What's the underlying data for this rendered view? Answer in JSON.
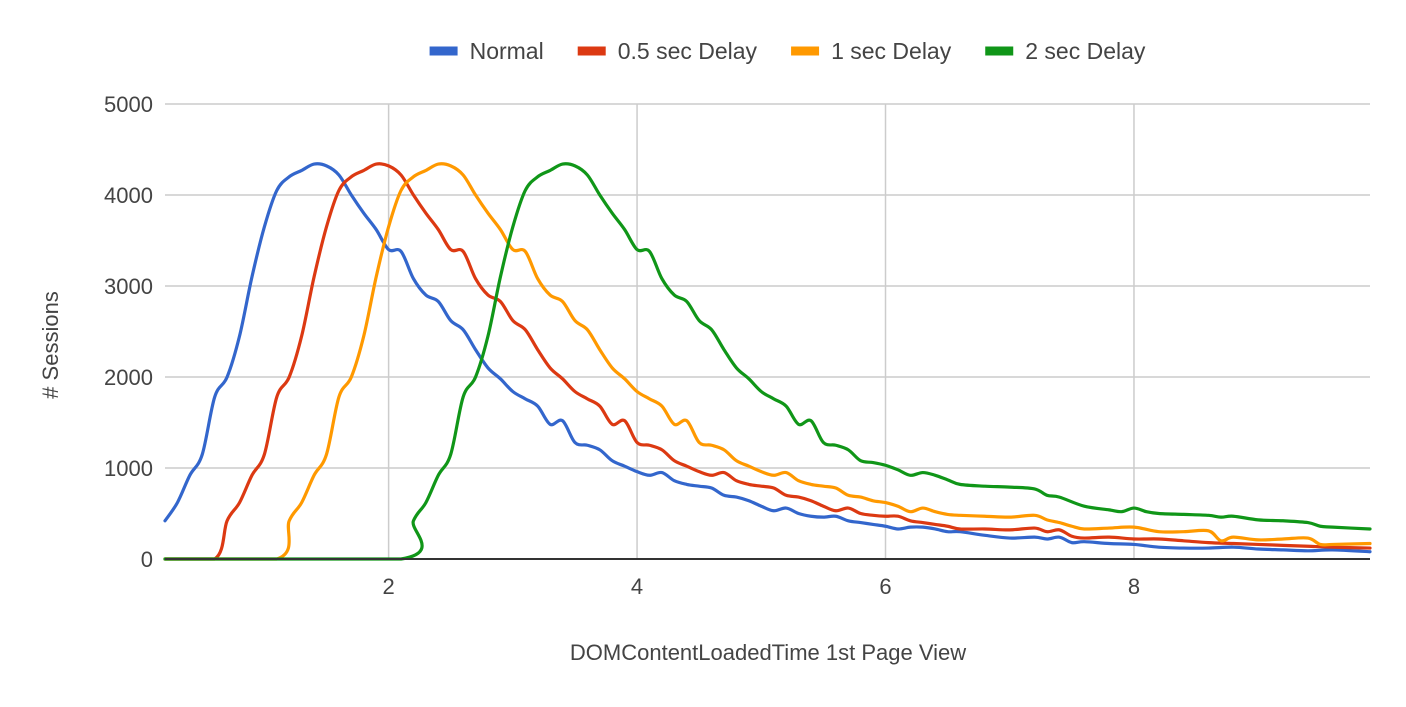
{
  "chart_data": {
    "type": "line",
    "title": "",
    "xlabel": "DOMContentLoadedTime 1st Page View",
    "ylabel": "# Sessions",
    "xlim": [
      0.2,
      9.9
    ],
    "ylim": [
      0,
      5000
    ],
    "x_ticks": [
      2,
      4,
      6,
      8
    ],
    "x_tick_labels": [
      "2",
      "4",
      "6",
      "8"
    ],
    "y_ticks": [
      0,
      1000,
      2000,
      3000,
      4000,
      5000
    ],
    "y_tick_labels": [
      "0",
      "1000",
      "2000",
      "3000",
      "4000",
      "5000"
    ],
    "grid": true,
    "legend_position": "top",
    "series": [
      {
        "name": "Normal",
        "color": "#3366cc",
        "points": [
          [
            0.2,
            420
          ],
          [
            0.3,
            620
          ],
          [
            0.4,
            920
          ],
          [
            0.5,
            1150
          ],
          [
            0.6,
            1780
          ],
          [
            0.7,
            2000
          ],
          [
            0.8,
            2450
          ],
          [
            0.9,
            3100
          ],
          [
            1.0,
            3650
          ],
          [
            1.1,
            4050
          ],
          [
            1.2,
            4200
          ],
          [
            1.3,
            4270
          ],
          [
            1.4,
            4340
          ],
          [
            1.5,
            4320
          ],
          [
            1.6,
            4220
          ],
          [
            1.7,
            4000
          ],
          [
            1.8,
            3800
          ],
          [
            1.9,
            3620
          ],
          [
            2.0,
            3400
          ],
          [
            2.1,
            3380
          ],
          [
            2.2,
            3080
          ],
          [
            2.3,
            2900
          ],
          [
            2.4,
            2830
          ],
          [
            2.5,
            2620
          ],
          [
            2.6,
            2520
          ],
          [
            2.7,
            2300
          ],
          [
            2.8,
            2100
          ],
          [
            2.9,
            1980
          ],
          [
            3.0,
            1840
          ],
          [
            3.1,
            1760
          ],
          [
            3.2,
            1680
          ],
          [
            3.3,
            1480
          ],
          [
            3.4,
            1520
          ],
          [
            3.5,
            1280
          ],
          [
            3.6,
            1250
          ],
          [
            3.7,
            1200
          ],
          [
            3.8,
            1080
          ],
          [
            3.9,
            1020
          ],
          [
            4.0,
            960
          ],
          [
            4.1,
            920
          ],
          [
            4.2,
            950
          ],
          [
            4.3,
            860
          ],
          [
            4.4,
            820
          ],
          [
            4.5,
            800
          ],
          [
            4.6,
            780
          ],
          [
            4.7,
            700
          ],
          [
            4.8,
            680
          ],
          [
            4.9,
            640
          ],
          [
            5.0,
            580
          ],
          [
            5.1,
            530
          ],
          [
            5.2,
            560
          ],
          [
            5.3,
            500
          ],
          [
            5.4,
            470
          ],
          [
            5.5,
            460
          ],
          [
            5.6,
            470
          ],
          [
            5.7,
            420
          ],
          [
            5.8,
            400
          ],
          [
            5.9,
            380
          ],
          [
            6.0,
            360
          ],
          [
            6.1,
            330
          ],
          [
            6.2,
            350
          ],
          [
            6.3,
            350
          ],
          [
            6.4,
            330
          ],
          [
            6.5,
            300
          ],
          [
            6.6,
            300
          ],
          [
            6.8,
            260
          ],
          [
            7.0,
            230
          ],
          [
            7.2,
            240
          ],
          [
            7.3,
            220
          ],
          [
            7.4,
            240
          ],
          [
            7.5,
            180
          ],
          [
            7.6,
            190
          ],
          [
            7.8,
            170
          ],
          [
            8.0,
            160
          ],
          [
            8.2,
            130
          ],
          [
            8.4,
            120
          ],
          [
            8.6,
            120
          ],
          [
            8.8,
            130
          ],
          [
            9.0,
            110
          ],
          [
            9.2,
            100
          ],
          [
            9.4,
            90
          ],
          [
            9.6,
            100
          ],
          [
            9.9,
            80
          ]
        ]
      },
      {
        "name": "0.5 sec Delay",
        "color": "#dc3912",
        "points": [
          [
            0.2,
            0
          ],
          [
            0.6,
            0
          ],
          [
            0.7,
            420
          ],
          [
            0.8,
            620
          ],
          [
            0.9,
            920
          ],
          [
            1.0,
            1150
          ],
          [
            1.1,
            1780
          ],
          [
            1.2,
            2000
          ],
          [
            1.3,
            2450
          ],
          [
            1.4,
            3100
          ],
          [
            1.5,
            3650
          ],
          [
            1.6,
            4050
          ],
          [
            1.7,
            4200
          ],
          [
            1.8,
            4270
          ],
          [
            1.9,
            4340
          ],
          [
            2.0,
            4320
          ],
          [
            2.1,
            4220
          ],
          [
            2.2,
            4000
          ],
          [
            2.3,
            3800
          ],
          [
            2.4,
            3620
          ],
          [
            2.5,
            3400
          ],
          [
            2.6,
            3380
          ],
          [
            2.7,
            3080
          ],
          [
            2.8,
            2900
          ],
          [
            2.9,
            2830
          ],
          [
            3.0,
            2620
          ],
          [
            3.1,
            2520
          ],
          [
            3.2,
            2300
          ],
          [
            3.3,
            2100
          ],
          [
            3.4,
            1980
          ],
          [
            3.5,
            1840
          ],
          [
            3.6,
            1760
          ],
          [
            3.7,
            1680
          ],
          [
            3.8,
            1480
          ],
          [
            3.9,
            1520
          ],
          [
            4.0,
            1280
          ],
          [
            4.1,
            1250
          ],
          [
            4.2,
            1200
          ],
          [
            4.3,
            1080
          ],
          [
            4.4,
            1020
          ],
          [
            4.5,
            960
          ],
          [
            4.6,
            920
          ],
          [
            4.7,
            950
          ],
          [
            4.8,
            860
          ],
          [
            4.9,
            820
          ],
          [
            5.0,
            800
          ],
          [
            5.1,
            780
          ],
          [
            5.2,
            700
          ],
          [
            5.3,
            680
          ],
          [
            5.4,
            640
          ],
          [
            5.5,
            580
          ],
          [
            5.6,
            530
          ],
          [
            5.7,
            560
          ],
          [
            5.8,
            500
          ],
          [
            5.9,
            480
          ],
          [
            6.0,
            470
          ],
          [
            6.1,
            470
          ],
          [
            6.2,
            420
          ],
          [
            6.3,
            400
          ],
          [
            6.4,
            380
          ],
          [
            6.5,
            360
          ],
          [
            6.6,
            330
          ],
          [
            6.8,
            330
          ],
          [
            7.0,
            320
          ],
          [
            7.2,
            340
          ],
          [
            7.3,
            300
          ],
          [
            7.4,
            320
          ],
          [
            7.5,
            250
          ],
          [
            7.6,
            230
          ],
          [
            7.8,
            240
          ],
          [
            8.0,
            220
          ],
          [
            8.2,
            220
          ],
          [
            8.4,
            200
          ],
          [
            8.6,
            180
          ],
          [
            8.8,
            170
          ],
          [
            9.0,
            160
          ],
          [
            9.2,
            150
          ],
          [
            9.4,
            140
          ],
          [
            9.6,
            130
          ],
          [
            9.9,
            120
          ]
        ]
      },
      {
        "name": "1 sec Delay",
        "color": "#ff9900",
        "points": [
          [
            0.2,
            0
          ],
          [
            1.1,
            0
          ],
          [
            1.2,
            420
          ],
          [
            1.3,
            620
          ],
          [
            1.4,
            920
          ],
          [
            1.5,
            1150
          ],
          [
            1.6,
            1780
          ],
          [
            1.7,
            2000
          ],
          [
            1.8,
            2450
          ],
          [
            1.9,
            3100
          ],
          [
            2.0,
            3650
          ],
          [
            2.1,
            4050
          ],
          [
            2.2,
            4200
          ],
          [
            2.3,
            4270
          ],
          [
            2.4,
            4340
          ],
          [
            2.5,
            4320
          ],
          [
            2.6,
            4220
          ],
          [
            2.7,
            4000
          ],
          [
            2.8,
            3800
          ],
          [
            2.9,
            3620
          ],
          [
            3.0,
            3400
          ],
          [
            3.1,
            3380
          ],
          [
            3.2,
            3080
          ],
          [
            3.3,
            2900
          ],
          [
            3.4,
            2830
          ],
          [
            3.5,
            2620
          ],
          [
            3.6,
            2520
          ],
          [
            3.7,
            2300
          ],
          [
            3.8,
            2100
          ],
          [
            3.9,
            1980
          ],
          [
            4.0,
            1840
          ],
          [
            4.1,
            1760
          ],
          [
            4.2,
            1680
          ],
          [
            4.3,
            1480
          ],
          [
            4.4,
            1520
          ],
          [
            4.5,
            1280
          ],
          [
            4.6,
            1250
          ],
          [
            4.7,
            1200
          ],
          [
            4.8,
            1080
          ],
          [
            4.9,
            1020
          ],
          [
            5.0,
            960
          ],
          [
            5.1,
            920
          ],
          [
            5.2,
            950
          ],
          [
            5.3,
            860
          ],
          [
            5.4,
            820
          ],
          [
            5.5,
            800
          ],
          [
            5.6,
            780
          ],
          [
            5.7,
            700
          ],
          [
            5.8,
            680
          ],
          [
            5.9,
            640
          ],
          [
            6.0,
            620
          ],
          [
            6.1,
            580
          ],
          [
            6.2,
            520
          ],
          [
            6.3,
            560
          ],
          [
            6.4,
            520
          ],
          [
            6.5,
            490
          ],
          [
            6.6,
            480
          ],
          [
            6.8,
            470
          ],
          [
            7.0,
            460
          ],
          [
            7.2,
            480
          ],
          [
            7.3,
            430
          ],
          [
            7.4,
            400
          ],
          [
            7.5,
            360
          ],
          [
            7.6,
            330
          ],
          [
            7.8,
            340
          ],
          [
            8.0,
            350
          ],
          [
            8.2,
            300
          ],
          [
            8.4,
            300
          ],
          [
            8.6,
            310
          ],
          [
            8.7,
            200
          ],
          [
            8.8,
            240
          ],
          [
            9.0,
            210
          ],
          [
            9.2,
            220
          ],
          [
            9.4,
            230
          ],
          [
            9.5,
            160
          ],
          [
            9.6,
            160
          ],
          [
            9.9,
            170
          ]
        ]
      },
      {
        "name": "2 sec Delay",
        "color": "#109618",
        "points": [
          [
            0.2,
            0
          ],
          [
            2.1,
            0
          ],
          [
            2.2,
            420
          ],
          [
            2.3,
            620
          ],
          [
            2.4,
            920
          ],
          [
            2.5,
            1150
          ],
          [
            2.6,
            1780
          ],
          [
            2.7,
            2000
          ],
          [
            2.8,
            2450
          ],
          [
            2.9,
            3100
          ],
          [
            3.0,
            3650
          ],
          [
            3.1,
            4050
          ],
          [
            3.2,
            4200
          ],
          [
            3.3,
            4270
          ],
          [
            3.4,
            4340
          ],
          [
            3.5,
            4320
          ],
          [
            3.6,
            4220
          ],
          [
            3.7,
            4000
          ],
          [
            3.8,
            3800
          ],
          [
            3.9,
            3620
          ],
          [
            4.0,
            3400
          ],
          [
            4.1,
            3380
          ],
          [
            4.2,
            3080
          ],
          [
            4.3,
            2900
          ],
          [
            4.4,
            2830
          ],
          [
            4.5,
            2620
          ],
          [
            4.6,
            2520
          ],
          [
            4.7,
            2300
          ],
          [
            4.8,
            2100
          ],
          [
            4.9,
            1980
          ],
          [
            5.0,
            1840
          ],
          [
            5.1,
            1760
          ],
          [
            5.2,
            1680
          ],
          [
            5.3,
            1480
          ],
          [
            5.4,
            1520
          ],
          [
            5.5,
            1280
          ],
          [
            5.6,
            1250
          ],
          [
            5.7,
            1200
          ],
          [
            5.8,
            1080
          ],
          [
            5.9,
            1060
          ],
          [
            6.0,
            1030
          ],
          [
            6.1,
            980
          ],
          [
            6.2,
            920
          ],
          [
            6.3,
            950
          ],
          [
            6.4,
            920
          ],
          [
            6.5,
            870
          ],
          [
            6.6,
            820
          ],
          [
            6.8,
            800
          ],
          [
            7.0,
            790
          ],
          [
            7.2,
            770
          ],
          [
            7.3,
            700
          ],
          [
            7.4,
            680
          ],
          [
            7.6,
            580
          ],
          [
            7.8,
            540
          ],
          [
            7.9,
            520
          ],
          [
            8.0,
            560
          ],
          [
            8.1,
            520
          ],
          [
            8.2,
            500
          ],
          [
            8.4,
            490
          ],
          [
            8.6,
            480
          ],
          [
            8.7,
            460
          ],
          [
            8.8,
            470
          ],
          [
            9.0,
            430
          ],
          [
            9.2,
            420
          ],
          [
            9.4,
            400
          ],
          [
            9.5,
            360
          ],
          [
            9.6,
            350
          ],
          [
            9.9,
            330
          ]
        ]
      }
    ]
  }
}
